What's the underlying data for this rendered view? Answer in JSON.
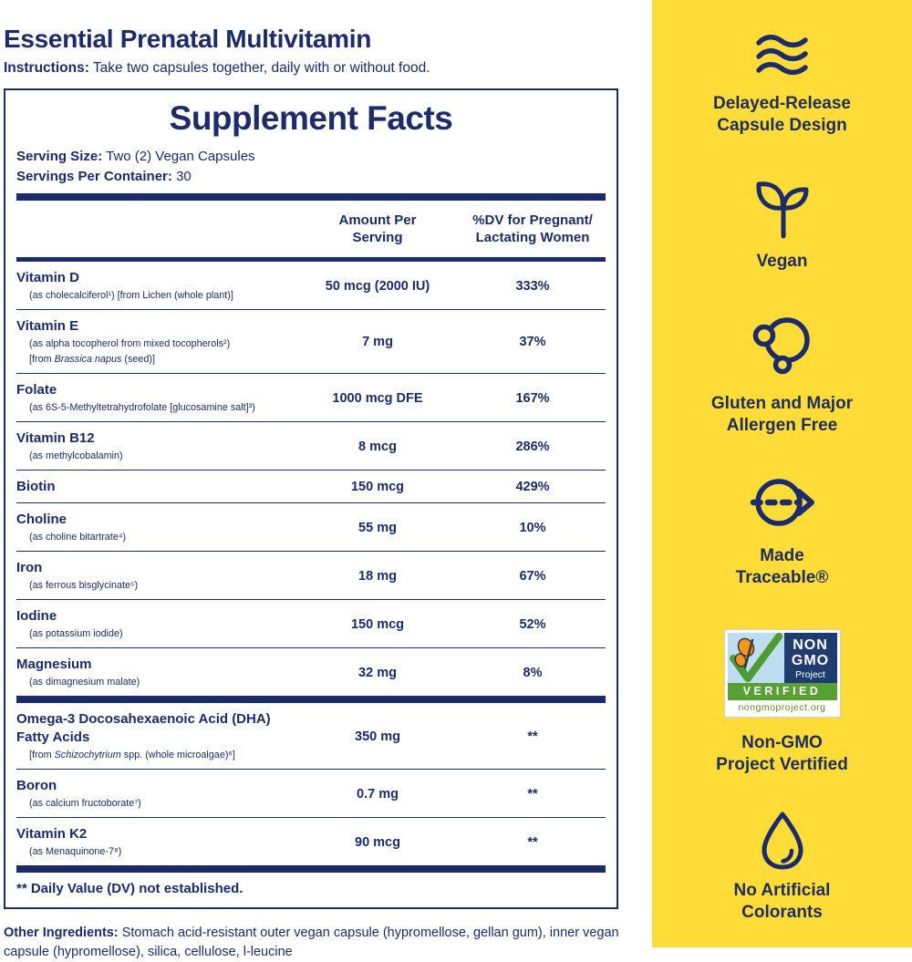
{
  "colors": {
    "navy": "#1b2b6b",
    "yellow": "#ffdc37",
    "badge_navy": "#1f3c70",
    "badge_green": "#58a033",
    "badge_sky": "#bfddf1",
    "butterfly_orange": "#f7941d"
  },
  "header": {
    "title": "Essential Prenatal Multivitamin",
    "instructions_label": "Instructions:",
    "instructions": "Take two capsules together, daily with or without food."
  },
  "facts": {
    "title": "Supplement Facts",
    "serving_size_label": "Serving Size:",
    "serving_size": "Two (2) Vegan Capsules",
    "servings_per_container_label": "Servings Per Container:",
    "servings_per_container": "30",
    "columns": {
      "amount": "Amount Per\nServing",
      "dv": "%DV for Pregnant/\nLactating Women"
    },
    "groups": [
      {
        "rows": [
          {
            "name": "Vitamin D",
            "sub": [
              [
                {
                  "t": "(as cholecalciferol¹) [from Lichen (whole plant)]"
                }
              ]
            ],
            "amount": "50 mcg (2000 IU)",
            "dv": "333%"
          },
          {
            "name": "Vitamin E",
            "sub": [
              [
                {
                  "t": "(as alpha tocopherol from mixed tocopherols²)"
                }
              ],
              [
                {
                  "t": "[from "
                },
                {
                  "t": "Brassica napus",
                  "i": true
                },
                {
                  "t": " (seed)]"
                }
              ]
            ],
            "amount": "7 mg",
            "dv": "37%"
          },
          {
            "name": "Folate",
            "sub": [
              [
                {
                  "t": "(as 6S-5-Methyltetrahydrofolate [glucosamine salt]³)"
                }
              ]
            ],
            "amount": "1000 mcg DFE",
            "dv": "167%"
          },
          {
            "name": "Vitamin B12",
            "sub": [
              [
                {
                  "t": "(as methylcobalamin)"
                }
              ]
            ],
            "amount": "8 mcg",
            "dv": "286%"
          },
          {
            "name": "Biotin",
            "sub": [],
            "amount": "150 mcg",
            "dv": "429%"
          },
          {
            "name": "Choline",
            "sub": [
              [
                {
                  "t": "(as choline bitartrate⁴)"
                }
              ]
            ],
            "amount": "55 mg",
            "dv": "10%"
          },
          {
            "name": "Iron",
            "sub": [
              [
                {
                  "t": "(as ferrous bisglycinate⁵)"
                }
              ]
            ],
            "amount": "18 mg",
            "dv": "67%"
          },
          {
            "name": "Iodine",
            "sub": [
              [
                {
                  "t": "(as potassium iodide)"
                }
              ]
            ],
            "amount": "150 mcg",
            "dv": "52%"
          },
          {
            "name": "Magnesium",
            "sub": [
              [
                {
                  "t": "(as dimagnesium malate)"
                }
              ]
            ],
            "amount": "32 mg",
            "dv": "8%"
          }
        ]
      },
      {
        "rows": [
          {
            "name": "Omega-3 Docosahexaenoic Acid (DHA)\nFatty Acids",
            "sub": [
              [
                {
                  "t": "[from "
                },
                {
                  "t": "Schizochytrium",
                  "i": true
                },
                {
                  "t": " spp. (whole microalgae)⁶]"
                }
              ]
            ],
            "amount": "350 mg",
            "dv": "**"
          },
          {
            "name": "Boron",
            "sub": [
              [
                {
                  "t": "(as calcium fructoborate⁷)"
                }
              ]
            ],
            "amount": "0.7 mg",
            "dv": "**"
          },
          {
            "name": "Vitamin K2",
            "sub": [
              [
                {
                  "t": "(as Menaquinone-7⁸)"
                }
              ]
            ],
            "amount": "90 mcg",
            "dv": "**"
          }
        ]
      }
    ],
    "footnote": "** Daily Value (DV) not established."
  },
  "other_ingredients": {
    "label": "Other Ingredients:",
    "text": "Stomach acid-resistant outer vegan capsule (hypromellose, gellan gum), inner vegan capsule (hypromellose), silica, cellulose, l-leucine"
  },
  "sidebar": {
    "items": [
      {
        "icon": "waves-icon",
        "label": "Delayed-Release\nCapsule Design"
      },
      {
        "icon": "sprout-icon",
        "label": "Vegan"
      },
      {
        "icon": "circles-icon",
        "label": "Gluten and Major\nAllergen Free"
      },
      {
        "icon": "traceable-arrow-icon",
        "label": "Made\nTraceable®"
      },
      {
        "icon": "nongmo-badge",
        "label": "Non-GMO\nProject Vertified"
      },
      {
        "icon": "droplet-icon",
        "label": "No Artificial\nColorants"
      }
    ],
    "badge": {
      "non": "NON",
      "gmo": "GMO",
      "project": "Project",
      "verified": "VERIFIED",
      "url": "nongmoproject.org"
    }
  }
}
